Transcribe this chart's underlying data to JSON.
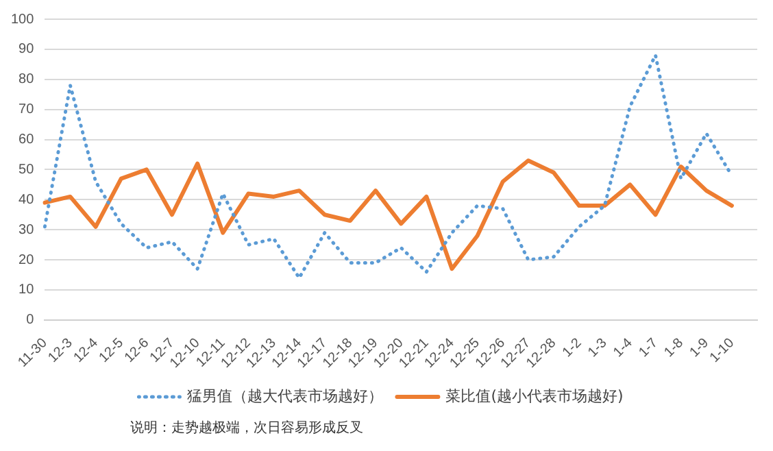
{
  "chart_data": {
    "type": "line",
    "categories": [
      "11-30",
      "12-3",
      "12-4",
      "12-5",
      "12-6",
      "12-7",
      "12-10",
      "12-11",
      "12-12",
      "12-13",
      "12-14",
      "12-17",
      "12-18",
      "12-19",
      "12-20",
      "12-21",
      "12-24",
      "12-25",
      "12-26",
      "12-27",
      "12-28",
      "1-2",
      "1-3",
      "1-4",
      "1-7",
      "1-8",
      "1-9",
      "1-10",
      null
    ],
    "series": [
      {
        "name": "猛男值（越大代表市场越好）",
        "color": "#5b9bd5",
        "line_style": "dotted",
        "values": [
          31,
          78,
          46,
          32,
          24,
          26,
          17,
          42,
          25,
          27,
          14,
          29,
          19,
          19,
          24,
          16,
          29,
          38,
          37,
          20,
          21,
          31,
          38,
          71,
          88,
          47,
          62,
          48,
          null
        ]
      },
      {
        "name": "菜比值(越小代表市场越好)",
        "color": "#ed7d31",
        "line_style": "solid",
        "values": [
          39,
          41,
          31,
          47,
          50,
          35,
          52,
          29,
          42,
          41,
          43,
          35,
          33,
          43,
          32,
          41,
          17,
          28,
          46,
          53,
          49,
          38,
          38,
          45,
          35,
          51,
          43,
          38,
          null
        ]
      }
    ],
    "ylim": [
      0,
      100
    ],
    "yticks": [
      0,
      10,
      20,
      30,
      40,
      50,
      60,
      70,
      80,
      90,
      100
    ],
    "grid": "y",
    "legend": "bottom",
    "marker": "none",
    "annotations": [
      "说明：走势越极端，次日容易形成反叉"
    ]
  }
}
